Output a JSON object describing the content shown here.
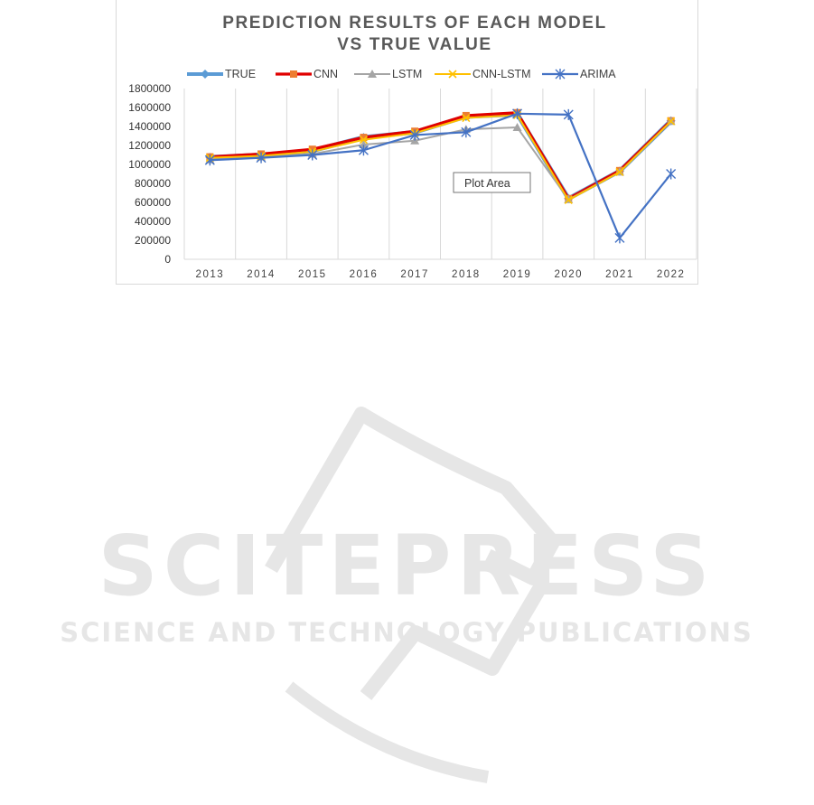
{
  "chart_data": {
    "type": "line",
    "title": [
      "PREDICTION RESULTS OF EACH MODEL",
      "VS TRUE VALUE"
    ],
    "categories": [
      "2013",
      "2014",
      "2015",
      "2016",
      "2017",
      "2018",
      "2019",
      "2020",
      "2021",
      "2022"
    ],
    "ylim": [
      0,
      1800000
    ],
    "yticks": [
      0,
      200000,
      400000,
      600000,
      800000,
      1000000,
      1200000,
      1400000,
      1600000,
      1800000
    ],
    "grid": "vertical",
    "legend": "top",
    "series": [
      {
        "name": "TRUE",
        "color": "#5b9bd5",
        "marker": "diamond",
        "values": [
          1075000,
          1100000,
          1145000,
          1285000,
          1340000,
          1505000,
          1530000,
          640000,
          930000,
          1460000
        ]
      },
      {
        "name": "CNN",
        "color": "#e00000",
        "marker": "square",
        "values": [
          1080000,
          1110000,
          1160000,
          1285000,
          1350000,
          1515000,
          1545000,
          640000,
          935000,
          1460000
        ]
      },
      {
        "name": "LSTM",
        "color": "#a5a5a5",
        "marker": "triangle",
        "values": [
          1050000,
          1080000,
          1110000,
          1210000,
          1250000,
          1370000,
          1390000,
          630000,
          920000,
          1455000
        ]
      },
      {
        "name": "CNN-LSTM",
        "color": "#ffc000",
        "marker": "x",
        "values": [
          1070000,
          1090000,
          1135000,
          1260000,
          1330000,
          1490000,
          1520000,
          625000,
          920000,
          1455000
        ]
      },
      {
        "name": "ARIMA",
        "color": "#4472c4",
        "marker": "star",
        "values": [
          1045000,
          1070000,
          1100000,
          1150000,
          1310000,
          1340000,
          1535000,
          1525000,
          225000,
          900000
        ]
      }
    ],
    "annotation": "Plot Area"
  },
  "watermark": {
    "line1": "SCITEPRESS",
    "line2": "SCIENCE AND TECHNOLOGY PUBLICATIONS"
  }
}
